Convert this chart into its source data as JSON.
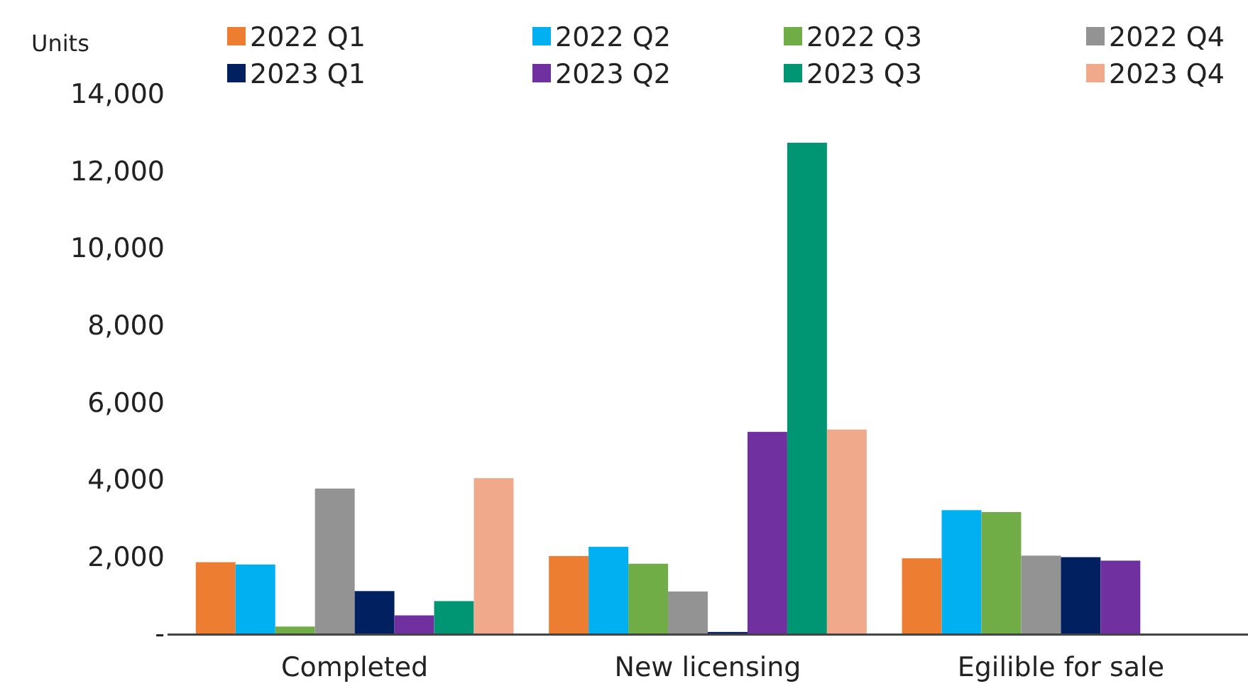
{
  "chart_data": {
    "type": "bar",
    "ylabel": "Units",
    "categories": [
      "Completed",
      "New licensing",
      "Egilible for sale"
    ],
    "series": [
      {
        "name": "2022 Q1",
        "color": "#ed7d31",
        "values": [
          1850,
          2010,
          1950
        ]
      },
      {
        "name": "2022 Q2",
        "color": "#00b0f0",
        "values": [
          1790,
          2250,
          3200
        ]
      },
      {
        "name": "2022 Q3",
        "color": "#70ad47",
        "values": [
          180,
          1810,
          3150
        ]
      },
      {
        "name": "2022 Q4",
        "color": "#939393",
        "values": [
          3760,
          1090,
          2020
        ]
      },
      {
        "name": "2023 Q1",
        "color": "#002060",
        "values": [
          1100,
          40,
          1980
        ]
      },
      {
        "name": "2023 Q2",
        "color": "#7030a0",
        "values": [
          470,
          5230,
          1890
        ]
      },
      {
        "name": "2023 Q3",
        "color": "#009673",
        "values": [
          840,
          12730,
          null
        ]
      },
      {
        "name": "2023 Q4",
        "color": "#f0a98a",
        "values": [
          4030,
          5290,
          null
        ]
      }
    ],
    "ylim": [
      0,
      14000
    ],
    "yticks": [
      {
        "value": 0,
        "label": "-"
      },
      {
        "value": 2000,
        "label": "2,000"
      },
      {
        "value": 4000,
        "label": "4,000"
      },
      {
        "value": 6000,
        "label": "6,000"
      },
      {
        "value": 8000,
        "label": "8,000"
      },
      {
        "value": 10000,
        "label": "10,000"
      },
      {
        "value": 12000,
        "label": "12,000"
      },
      {
        "value": 14000,
        "label": "14,000"
      }
    ],
    "grid": false,
    "legend": "top"
  }
}
